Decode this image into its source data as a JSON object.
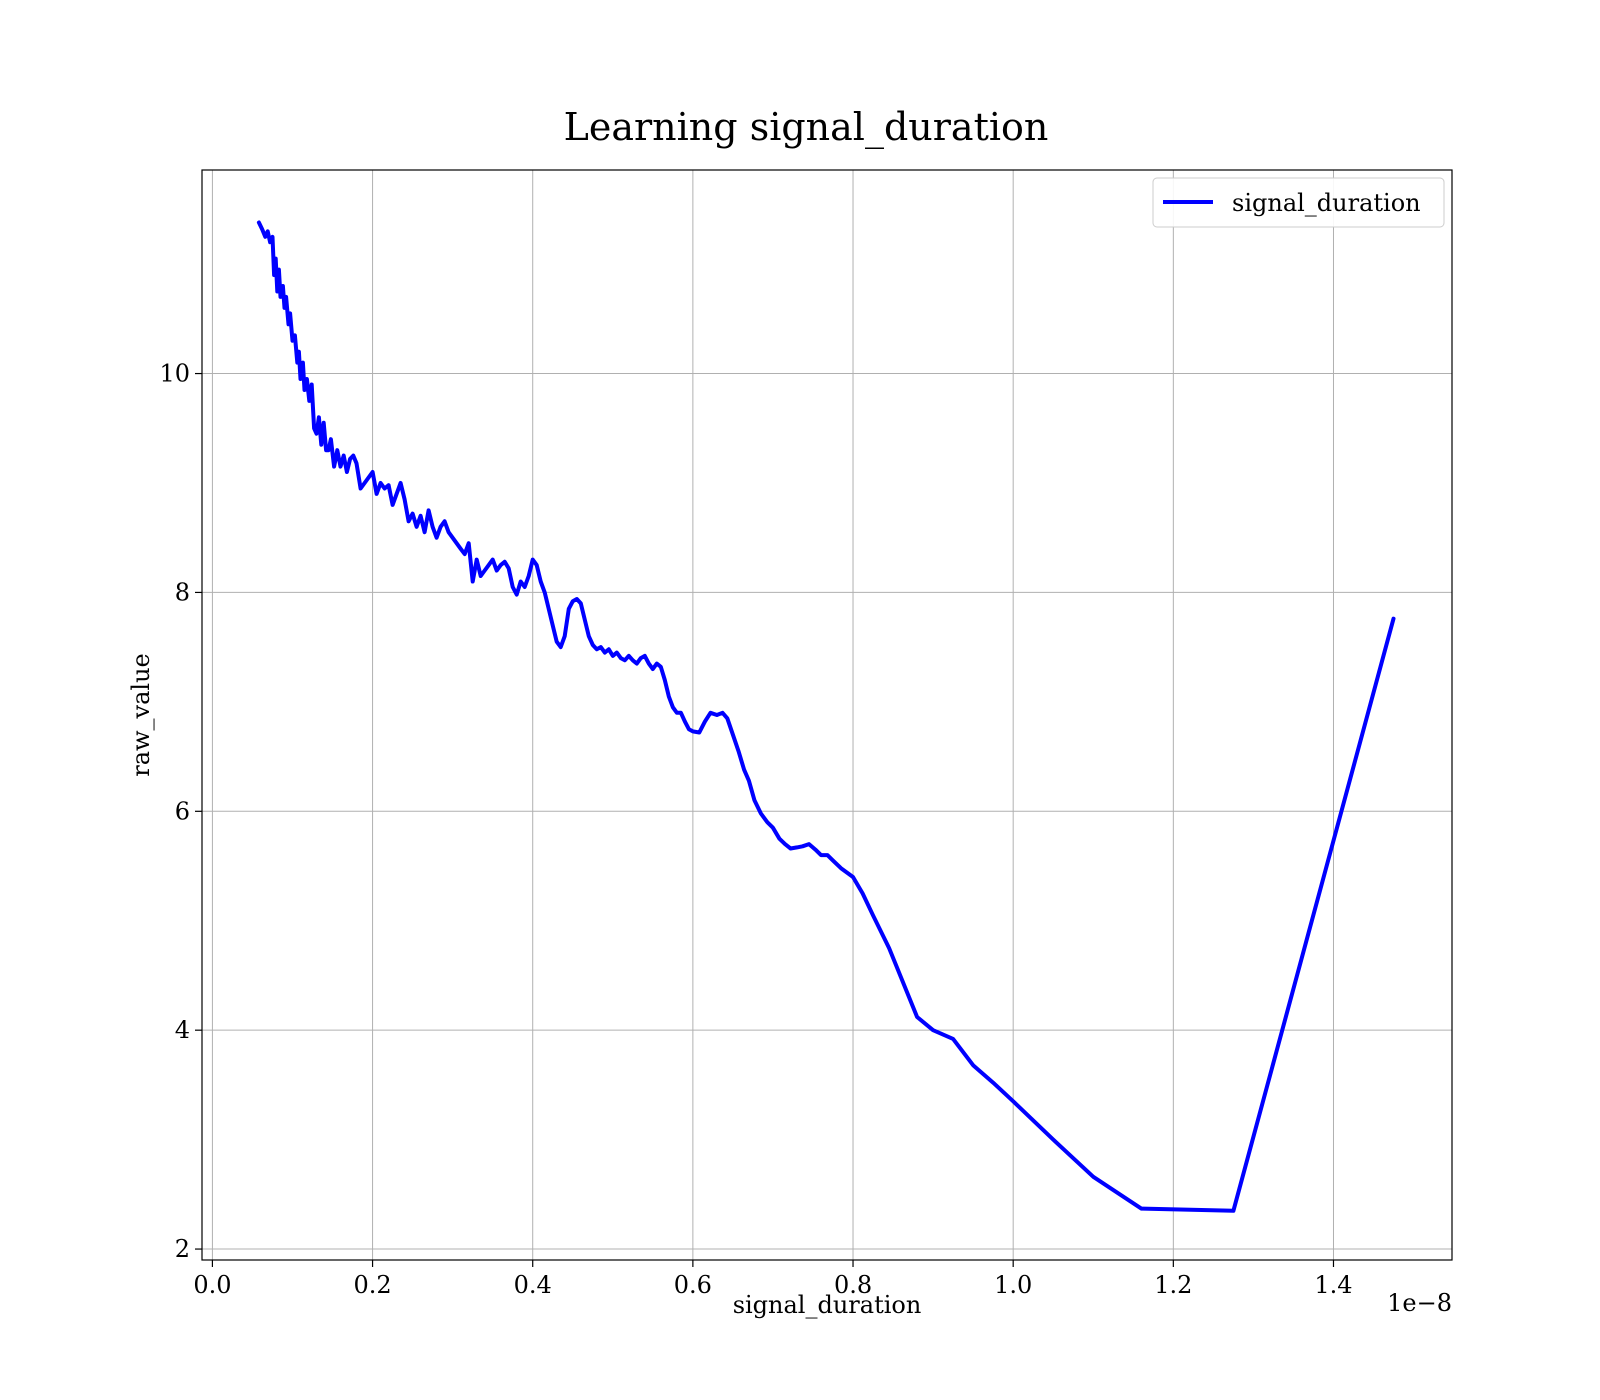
{
  "chart_data": {
    "type": "line",
    "title": "Learning signal_duration",
    "xlabel": "signal_duration",
    "ylabel": "raw_value",
    "x_offset_label": "1e−8",
    "xlim": [
      -0.013,
      1.548
    ],
    "ylim": [
      1.9,
      11.86
    ],
    "xticks": [
      0.0,
      0.2,
      0.4,
      0.6,
      0.8,
      1.0,
      1.2,
      1.4
    ],
    "xtick_labels": [
      "0.0",
      "0.2",
      "0.4",
      "0.6",
      "0.8",
      "1.0",
      "1.2",
      "1.4"
    ],
    "yticks": [
      2,
      4,
      6,
      8,
      10
    ],
    "ytick_labels": [
      "2",
      "4",
      "6",
      "8",
      "10"
    ],
    "grid": true,
    "legend_position": "top-right",
    "series": [
      {
        "name": "signal_duration",
        "color": "#0000ff",
        "x": [
          0.058,
          0.062,
          0.066,
          0.069,
          0.072,
          0.075,
          0.077,
          0.079,
          0.081,
          0.083,
          0.085,
          0.088,
          0.09,
          0.092,
          0.095,
          0.097,
          0.1,
          0.103,
          0.106,
          0.108,
          0.11,
          0.113,
          0.115,
          0.118,
          0.121,
          0.124,
          0.127,
          0.13,
          0.133,
          0.136,
          0.139,
          0.142,
          0.145,
          0.148,
          0.152,
          0.156,
          0.16,
          0.164,
          0.168,
          0.172,
          0.176,
          0.18,
          0.185,
          0.19,
          0.195,
          0.2,
          0.205,
          0.21,
          0.215,
          0.22,
          0.225,
          0.23,
          0.235,
          0.24,
          0.245,
          0.25,
          0.255,
          0.26,
          0.265,
          0.27,
          0.275,
          0.28,
          0.285,
          0.29,
          0.295,
          0.3,
          0.305,
          0.31,
          0.315,
          0.32,
          0.325,
          0.33,
          0.335,
          0.34,
          0.345,
          0.35,
          0.355,
          0.36,
          0.365,
          0.37,
          0.375,
          0.38,
          0.385,
          0.39,
          0.395,
          0.4,
          0.405,
          0.41,
          0.415,
          0.42,
          0.425,
          0.43,
          0.435,
          0.44,
          0.445,
          0.45,
          0.455,
          0.46,
          0.465,
          0.47,
          0.475,
          0.48,
          0.485,
          0.49,
          0.495,
          0.5,
          0.505,
          0.51,
          0.515,
          0.52,
          0.525,
          0.53,
          0.535,
          0.54,
          0.545,
          0.55,
          0.555,
          0.56,
          0.565,
          0.57,
          0.575,
          0.58,
          0.585,
          0.59,
          0.595,
          0.6,
          0.608,
          0.615,
          0.622,
          0.63,
          0.637,
          0.643,
          0.65,
          0.657,
          0.664,
          0.67,
          0.677,
          0.685,
          0.693,
          0.7,
          0.708,
          0.715,
          0.722,
          0.73,
          0.737,
          0.745,
          0.753,
          0.76,
          0.768,
          0.775,
          0.785,
          0.8,
          0.812,
          0.825,
          0.845,
          0.88,
          0.9,
          0.925,
          0.95,
          0.975,
          1.0,
          1.05,
          1.1,
          1.16,
          1.275,
          1.475
        ],
        "y": [
          11.38,
          11.32,
          11.25,
          11.3,
          11.2,
          11.25,
          10.9,
          11.05,
          10.75,
          10.95,
          10.7,
          10.8,
          10.6,
          10.7,
          10.45,
          10.55,
          10.3,
          10.35,
          10.1,
          10.2,
          9.95,
          10.1,
          9.85,
          9.95,
          9.75,
          9.9,
          9.5,
          9.45,
          9.6,
          9.35,
          9.55,
          9.3,
          9.3,
          9.4,
          9.15,
          9.3,
          9.15,
          9.25,
          9.1,
          9.22,
          9.25,
          9.18,
          8.95,
          9.0,
          9.05,
          9.1,
          8.9,
          9.0,
          8.95,
          8.98,
          8.8,
          8.9,
          9.0,
          8.85,
          8.65,
          8.72,
          8.6,
          8.7,
          8.55,
          8.75,
          8.6,
          8.5,
          8.6,
          8.65,
          8.55,
          8.5,
          8.45,
          8.4,
          8.35,
          8.45,
          8.1,
          8.3,
          8.15,
          8.2,
          8.25,
          8.3,
          8.2,
          8.25,
          8.28,
          8.22,
          8.05,
          7.98,
          8.1,
          8.05,
          8.15,
          8.3,
          8.25,
          8.1,
          8.0,
          7.85,
          7.7,
          7.55,
          7.5,
          7.6,
          7.85,
          7.92,
          7.94,
          7.9,
          7.75,
          7.6,
          7.52,
          7.48,
          7.5,
          7.45,
          7.48,
          7.42,
          7.45,
          7.4,
          7.38,
          7.42,
          7.38,
          7.35,
          7.4,
          7.42,
          7.35,
          7.3,
          7.35,
          7.32,
          7.2,
          7.05,
          6.95,
          6.9,
          6.9,
          6.82,
          6.75,
          6.73,
          6.72,
          6.82,
          6.9,
          6.88,
          6.9,
          6.85,
          6.7,
          6.55,
          6.38,
          6.28,
          6.1,
          5.98,
          5.9,
          5.85,
          5.75,
          5.7,
          5.66,
          5.67,
          5.68,
          5.7,
          5.65,
          5.6,
          5.6,
          5.55,
          5.48,
          5.4,
          5.25,
          5.05,
          4.75,
          4.12,
          4.0,
          3.92,
          3.68,
          3.52,
          3.35,
          3.0,
          2.66,
          2.37,
          2.35,
          7.76
        ]
      }
    ]
  }
}
